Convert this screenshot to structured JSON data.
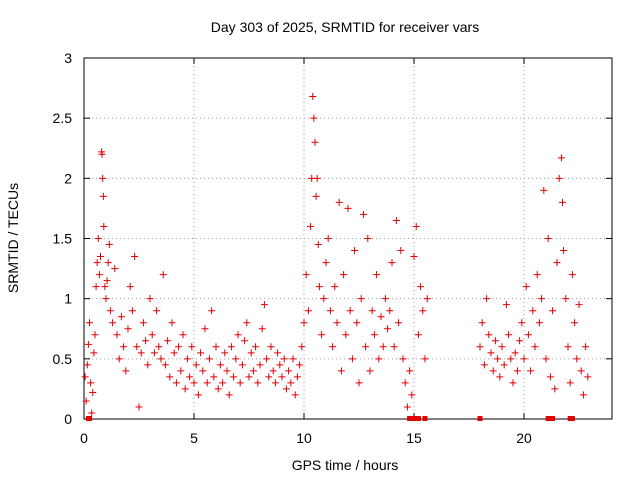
{
  "chart_data": {
    "type": "scatter",
    "title": "Day 303 of 2025, SRMTID for receiver vars",
    "xlabel": "GPS time / hours",
    "ylabel": "SRMTID / TECUs",
    "xlim": [
      0,
      24
    ],
    "ylim": [
      0,
      3
    ],
    "xticks": [
      0,
      5,
      10,
      15,
      20
    ],
    "yticks": [
      0,
      0.5,
      1,
      1.5,
      2,
      2.5,
      3
    ],
    "xtick_labels": [
      "0",
      "5",
      "10",
      "15",
      "20"
    ],
    "ytick_labels": [
      "0",
      "0.5",
      "1",
      "1.5",
      "2",
      "2.5",
      "3"
    ],
    "grid": true,
    "marker": "plus",
    "color": "#e00000",
    "series": [
      {
        "name": "SRMTID",
        "points": [
          [
            0.05,
            0.35
          ],
          [
            0.1,
            0.15
          ],
          [
            0.15,
            0.45
          ],
          [
            0.2,
            0.62
          ],
          [
            0.25,
            0.8
          ],
          [
            0.3,
            0.3
          ],
          [
            0.35,
            0.05
          ],
          [
            0.4,
            0.22
          ],
          [
            0.45,
            0.55
          ],
          [
            0.5,
            0.7
          ],
          [
            0.55,
            1.1
          ],
          [
            0.6,
            1.3
          ],
          [
            0.65,
            1.5
          ],
          [
            0.7,
            1.2
          ],
          [
            0.75,
            1.35
          ],
          [
            0.8,
            2.22
          ],
          [
            0.82,
            2.2
          ],
          [
            0.85,
            2.0
          ],
          [
            0.88,
            1.85
          ],
          [
            0.9,
            1.6
          ],
          [
            0.95,
            1.1
          ],
          [
            1.0,
            1.0
          ],
          [
            1.05,
            1.15
          ],
          [
            1.1,
            1.3
          ],
          [
            1.15,
            1.45
          ],
          [
            1.2,
            0.9
          ],
          [
            1.3,
            0.8
          ],
          [
            1.4,
            1.25
          ],
          [
            1.5,
            0.7
          ],
          [
            1.6,
            0.5
          ],
          [
            1.7,
            0.85
          ],
          [
            1.8,
            0.6
          ],
          [
            1.9,
            0.4
          ],
          [
            2.0,
            0.75
          ],
          [
            2.1,
            1.1
          ],
          [
            2.2,
            0.9
          ],
          [
            2.3,
            1.35
          ],
          [
            2.4,
            0.6
          ],
          [
            2.5,
            0.1
          ],
          [
            2.6,
            0.55
          ],
          [
            2.7,
            0.8
          ],
          [
            2.8,
            0.65
          ],
          [
            2.9,
            0.45
          ],
          [
            3.0,
            1.0
          ],
          [
            3.1,
            0.7
          ],
          [
            3.2,
            0.55
          ],
          [
            3.3,
            0.9
          ],
          [
            3.4,
            0.6
          ],
          [
            3.5,
            0.5
          ],
          [
            3.6,
            1.2
          ],
          [
            3.7,
            0.45
          ],
          [
            3.8,
            0.65
          ],
          [
            3.9,
            0.35
          ],
          [
            4.0,
            0.8
          ],
          [
            4.1,
            0.55
          ],
          [
            4.2,
            0.3
          ],
          [
            4.3,
            0.6
          ],
          [
            4.4,
            0.4
          ],
          [
            4.5,
            0.7
          ],
          [
            4.6,
            0.25
          ],
          [
            4.7,
            0.5
          ],
          [
            4.8,
            0.35
          ],
          [
            4.9,
            0.6
          ],
          [
            5.0,
            0.3
          ],
          [
            5.1,
            0.45
          ],
          [
            5.2,
            0.2
          ],
          [
            5.3,
            0.55
          ],
          [
            5.4,
            0.4
          ],
          [
            5.5,
            0.75
          ],
          [
            5.6,
            0.3
          ],
          [
            5.7,
            0.5
          ],
          [
            5.8,
            0.9
          ],
          [
            5.9,
            0.35
          ],
          [
            6.0,
            0.6
          ],
          [
            6.1,
            0.25
          ],
          [
            6.2,
            0.45
          ],
          [
            6.3,
            0.3
          ],
          [
            6.4,
            0.55
          ],
          [
            6.5,
            0.4
          ],
          [
            6.6,
            0.2
          ],
          [
            6.7,
            0.6
          ],
          [
            6.8,
            0.35
          ],
          [
            6.9,
            0.5
          ],
          [
            7.0,
            0.7
          ],
          [
            7.1,
            0.3
          ],
          [
            7.2,
            0.45
          ],
          [
            7.3,
            0.65
          ],
          [
            7.4,
            0.8
          ],
          [
            7.5,
            0.35
          ],
          [
            7.6,
            0.55
          ],
          [
            7.7,
            0.4
          ],
          [
            7.8,
            0.6
          ],
          [
            7.9,
            0.3
          ],
          [
            8.0,
            0.45
          ],
          [
            8.1,
            0.75
          ],
          [
            8.2,
            0.95
          ],
          [
            8.3,
            0.5
          ],
          [
            8.4,
            0.35
          ],
          [
            8.5,
            0.6
          ],
          [
            8.6,
            0.4
          ],
          [
            8.7,
            0.3
          ],
          [
            8.8,
            0.55
          ],
          [
            8.9,
            0.45
          ],
          [
            9.0,
            0.35
          ],
          [
            9.1,
            0.5
          ],
          [
            9.2,
            0.25
          ],
          [
            9.3,
            0.4
          ],
          [
            9.4,
            0.3
          ],
          [
            9.5,
            0.5
          ],
          [
            9.6,
            0.2
          ],
          [
            9.7,
            0.35
          ],
          [
            9.8,
            0.45
          ],
          [
            9.9,
            0.6
          ],
          [
            10.0,
            0.8
          ],
          [
            10.1,
            1.2
          ],
          [
            10.2,
            0.9
          ],
          [
            10.3,
            1.6
          ],
          [
            10.35,
            2.0
          ],
          [
            10.4,
            2.68
          ],
          [
            10.45,
            2.5
          ],
          [
            10.5,
            2.3
          ],
          [
            10.55,
            1.85
          ],
          [
            10.6,
            2.0
          ],
          [
            10.65,
            1.45
          ],
          [
            10.7,
            1.1
          ],
          [
            10.8,
            0.7
          ],
          [
            10.9,
            1.0
          ],
          [
            11.0,
            1.3
          ],
          [
            11.1,
            1.5
          ],
          [
            11.2,
            0.9
          ],
          [
            11.3,
            0.6
          ],
          [
            11.4,
            1.1
          ],
          [
            11.5,
            0.8
          ],
          [
            11.6,
            1.8
          ],
          [
            11.7,
            0.4
          ],
          [
            11.8,
            1.2
          ],
          [
            11.9,
            0.7
          ],
          [
            12.0,
            1.75
          ],
          [
            12.1,
            0.9
          ],
          [
            12.2,
            0.5
          ],
          [
            12.3,
            1.4
          ],
          [
            12.4,
            0.8
          ],
          [
            12.5,
            0.3
          ],
          [
            12.6,
            1.0
          ],
          [
            12.7,
            1.7
          ],
          [
            12.8,
            0.6
          ],
          [
            12.9,
            1.5
          ],
          [
            13.0,
            0.4
          ],
          [
            13.1,
            0.9
          ],
          [
            13.2,
            0.7
          ],
          [
            13.3,
            1.2
          ],
          [
            13.4,
            0.5
          ],
          [
            13.5,
            0.85
          ],
          [
            13.6,
            0.6
          ],
          [
            13.7,
            1.0
          ],
          [
            13.8,
            0.75
          ],
          [
            13.9,
            0.9
          ],
          [
            14.0,
            1.3
          ],
          [
            14.1,
            0.6
          ],
          [
            14.2,
            1.65
          ],
          [
            14.3,
            0.8
          ],
          [
            14.4,
            1.4
          ],
          [
            14.5,
            0.5
          ],
          [
            14.6,
            0.3
          ],
          [
            14.7,
            0.1
          ],
          [
            14.8,
            0.4
          ],
          [
            14.9,
            0.2
          ],
          [
            15.0,
            1.35
          ],
          [
            15.1,
            1.6
          ],
          [
            15.2,
            0.7
          ],
          [
            15.3,
            1.1
          ],
          [
            15.4,
            0.9
          ],
          [
            15.5,
            0.5
          ],
          [
            15.6,
            1.0
          ],
          [
            18.0,
            0.6
          ],
          [
            18.1,
            0.8
          ],
          [
            18.2,
            0.45
          ],
          [
            18.3,
            1.0
          ],
          [
            18.4,
            0.7
          ],
          [
            18.5,
            0.55
          ],
          [
            18.6,
            0.4
          ],
          [
            18.7,
            0.65
          ],
          [
            18.8,
            0.5
          ],
          [
            18.9,
            0.35
          ],
          [
            19.0,
            0.6
          ],
          [
            19.1,
            0.45
          ],
          [
            19.2,
            0.95
          ],
          [
            19.3,
            0.7
          ],
          [
            19.4,
            0.5
          ],
          [
            19.5,
            0.3
          ],
          [
            19.6,
            0.55
          ],
          [
            19.7,
            0.4
          ],
          [
            19.8,
            0.65
          ],
          [
            19.9,
            0.8
          ],
          [
            20.0,
            0.5
          ],
          [
            20.1,
            1.1
          ],
          [
            20.2,
            0.7
          ],
          [
            20.3,
            0.4
          ],
          [
            20.4,
            0.9
          ],
          [
            20.5,
            0.6
          ],
          [
            20.6,
            1.2
          ],
          [
            20.7,
            0.8
          ],
          [
            20.8,
            1.0
          ],
          [
            20.9,
            1.9
          ],
          [
            21.0,
            0.5
          ],
          [
            21.1,
            1.5
          ],
          [
            21.2,
            0.35
          ],
          [
            21.3,
            0.9
          ],
          [
            21.4,
            0.25
          ],
          [
            21.5,
            1.3
          ],
          [
            21.6,
            2.0
          ],
          [
            21.7,
            2.17
          ],
          [
            21.75,
            1.8
          ],
          [
            21.8,
            1.4
          ],
          [
            21.9,
            1.0
          ],
          [
            22.0,
            0.6
          ],
          [
            22.1,
            0.3
          ],
          [
            22.2,
            1.2
          ],
          [
            22.3,
            0.8
          ],
          [
            22.4,
            0.5
          ],
          [
            22.5,
            0.95
          ],
          [
            22.6,
            0.4
          ],
          [
            22.7,
            0.2
          ],
          [
            22.8,
            0.6
          ],
          [
            22.9,
            0.35
          ]
        ]
      }
    ],
    "zero_markers_x": [
      0.2,
      0.25,
      14.8,
      15.0,
      15.2,
      15.5,
      18.0,
      21.1,
      21.2,
      21.3,
      22.1,
      22.2
    ]
  }
}
